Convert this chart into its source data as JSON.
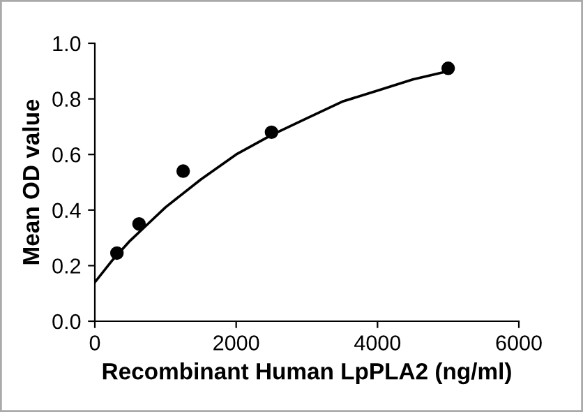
{
  "chart_data": {
    "type": "scatter",
    "xlabel": "Recombinant Human LpPLA2 (ng/ml)",
    "ylabel": "Mean OD value",
    "xlim": [
      0,
      6000
    ],
    "xticks": [
      0,
      2000,
      4000,
      6000
    ],
    "ylim": [
      0.0,
      1.0
    ],
    "yticks": [
      {
        "value": 0,
        "label": "0.0"
      },
      0.2,
      0.4,
      0.6,
      0.8,
      {
        "value": 1,
        "label": "1.0"
      }
    ],
    "grid": false,
    "legend": false,
    "series": [
      {
        "marker": "circle",
        "color": "#000000",
        "x": [
          312.5,
          625,
          1250,
          2500,
          5000
        ],
        "values": [
          0.245,
          0.35,
          0.54,
          0.68,
          0.91
        ]
      },
      {
        "type": "line",
        "color": "#000000",
        "x": [
          0,
          250,
          500,
          750,
          1000,
          1500,
          2000,
          2500,
          3000,
          3500,
          4000,
          4500,
          5000
        ],
        "values": [
          0.14,
          0.22,
          0.29,
          0.35,
          0.41,
          0.51,
          0.6,
          0.67,
          0.73,
          0.79,
          0.83,
          0.87,
          0.9
        ]
      }
    ]
  }
}
